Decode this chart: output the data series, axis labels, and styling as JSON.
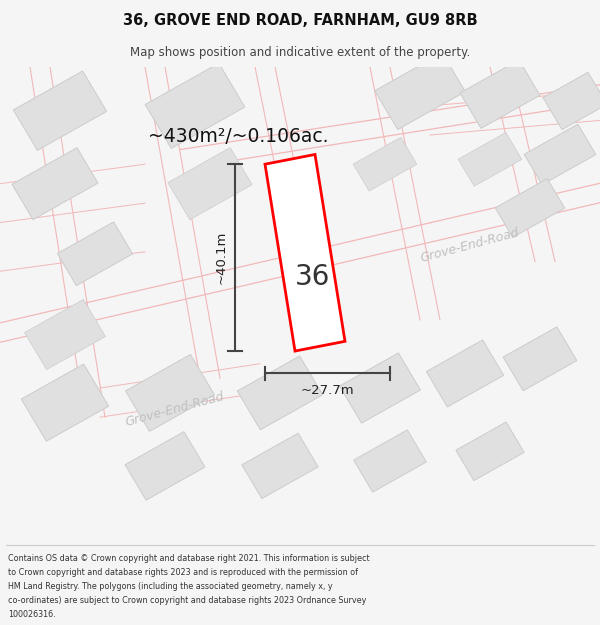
{
  "title": "36, GROVE END ROAD, FARNHAM, GU9 8RB",
  "subtitle": "Map shows position and indicative extent of the property.",
  "area_text": "~430m²/~0.106ac.",
  "number_label": "36",
  "width_label": "~27.7m",
  "height_label": "~40.1m",
  "road_label_upper": "Grove-End-Road",
  "road_label_lower": "Grove-End-Road",
  "footer_lines": [
    "Contains OS data © Crown copyright and database right 2021. This information is subject",
    "to Crown copyright and database rights 2023 and is reproduced with the permission of",
    "HM Land Registry. The polygons (including the associated geometry, namely x, y",
    "co-ordinates) are subject to Crown copyright and database rights 2023 Ordnance Survey",
    "100026316."
  ],
  "bg_color": "#f5f5f5",
  "map_bg": "#ffffff",
  "road_line_color": "#f2b8b8",
  "building_fill": "#e0e0e0",
  "building_edge": "#cccccc",
  "highlight_color": "#ff0000",
  "dim_line_color": "#444444",
  "text_dark": "#111111",
  "text_gray": "#999999",
  "road_text_color": "#c0c0c0"
}
